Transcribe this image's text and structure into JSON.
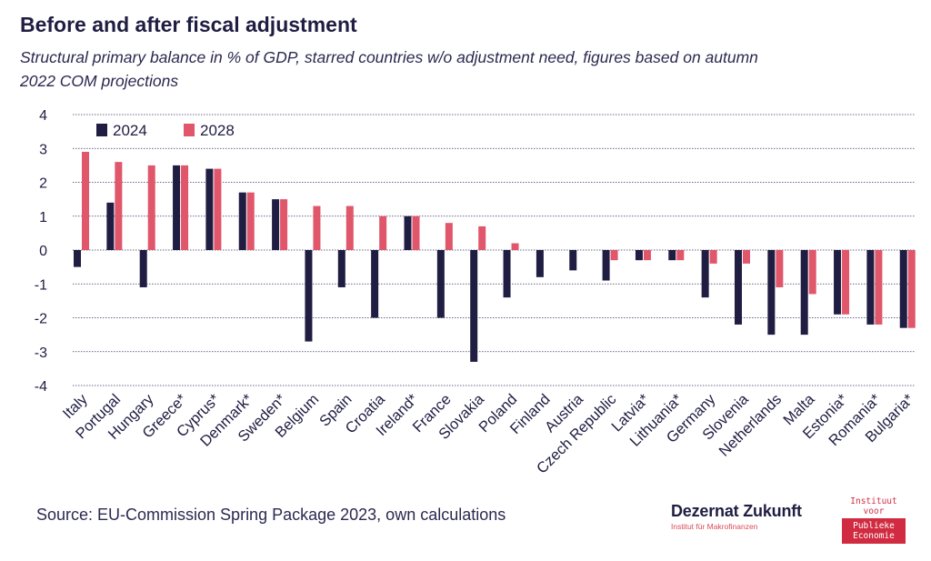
{
  "title": "Before and after fiscal adjustment",
  "subtitle": "Structural primary balance in % of GDP, starred countries w/o adjustment need, figures based on autumn 2022 COM projections",
  "source": "Source: EU-Commission Spring Package 2023, own calculations",
  "logos": {
    "dezernat_main_a": "Dezernat",
    "dezernat_main_b": "Zukunft",
    "dezernat_sub": "Institut für Makrofinanzen",
    "ipe_line1": "Instituut",
    "ipe_line2": "voor",
    "ipe_line3": "Publieke",
    "ipe_line4": "Economie"
  },
  "colors": {
    "series_2024": "#1f1d42",
    "series_2028": "#e0566a",
    "grid": "#3a3866",
    "text": "#1f1d42"
  },
  "chart_data": {
    "type": "bar",
    "categories": [
      "Italy",
      "Portugal",
      "Hungary",
      "Greece*",
      "Cyprus*",
      "Denmark*",
      "Sweden*",
      "Belgium",
      "Spain",
      "Croatia",
      "Ireland*",
      "France",
      "Slovakia",
      "Poland",
      "Finland",
      "Austria",
      "Czech Republic",
      "Latvia*",
      "Lithuania*",
      "Germany",
      "Slovenia",
      "Netherlands",
      "Malta",
      "Estonia*",
      "Romania*",
      "Bulgaria*"
    ],
    "series": [
      {
        "name": "2024",
        "values": [
          -0.5,
          1.4,
          -1.1,
          2.5,
          2.4,
          1.7,
          1.5,
          -2.7,
          -1.1,
          -2.0,
          1.0,
          -2.0,
          -3.3,
          -1.4,
          -0.8,
          -0.6,
          -0.9,
          -0.3,
          -0.3,
          -1.4,
          -2.2,
          -2.5,
          -2.5,
          -1.9,
          -2.2,
          -2.3
        ]
      },
      {
        "name": "2028",
        "values": [
          2.9,
          2.6,
          2.5,
          2.5,
          2.4,
          1.7,
          1.5,
          1.3,
          1.3,
          1.0,
          1.0,
          0.8,
          0.7,
          0.2,
          0.0,
          0.0,
          -0.3,
          -0.3,
          -0.3,
          -0.4,
          -0.4,
          -1.1,
          -1.3,
          -1.9,
          -2.2,
          -2.3
        ]
      }
    ],
    "ylim": [
      -4,
      4
    ],
    "yticks": [
      "4",
      "3",
      "2",
      "1",
      "0",
      "-1",
      "-2",
      "-3",
      "-4"
    ],
    "ytick_values": [
      4,
      3,
      2,
      1,
      0,
      -1,
      -2,
      -3,
      -4
    ],
    "grid": true,
    "legend_position": "top-left"
  }
}
